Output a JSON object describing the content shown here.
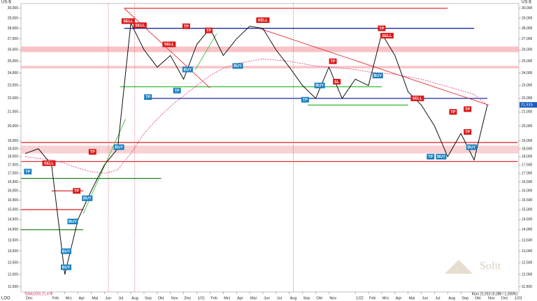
{
  "chart_data": {
    "type": "line",
    "axis_unit": "US-$",
    "scale_label": "LOG",
    "log_scale": true,
    "watermark": "Solit",
    "footer_left": "SMA(200) 21,478",
    "footer_right": "Kurs 21,515 (0,280 / 1,265%)",
    "last_label": "21,515",
    "categories": [
      "Dec",
      null,
      "Feb",
      "Mrz",
      "Apr",
      "Mai",
      "Jun",
      "Jul",
      "Aug",
      "Sep",
      "Okt",
      "Nov",
      "Dez",
      "1/21",
      "Feb",
      "Mrz",
      "Apr",
      "Mai",
      "Jun",
      "Jul",
      "Aug",
      "Sep",
      "Okt",
      "Nov",
      null,
      "1/22",
      "Feb",
      "Mrz",
      "Apr",
      "Mai",
      "Jun",
      "Jul",
      "Aug",
      "Sep",
      "Okt",
      "Nov",
      "Dez",
      "1/23"
    ],
    "series": [
      {
        "name": "Kurs",
        "color": "#111111",
        "values": [
          18200,
          18500,
          17500,
          12000,
          14500,
          16000,
          17500,
          18500,
          28500,
          26000,
          24500,
          25500,
          23500,
          26500,
          28000,
          25500,
          27000,
          28200,
          28000,
          26000,
          24500,
          23000,
          22000,
          24500,
          22000,
          23500,
          23000,
          27500,
          25500,
          22500,
          21500,
          20000,
          18000,
          19500,
          17800,
          21515,
          null,
          null
        ]
      },
      {
        "name": "SMA(200)",
        "color": "#e0307a",
        "values": [
          18000,
          17900,
          17800,
          17600,
          17300,
          17100,
          17000,
          17200,
          18200,
          19500,
          20500,
          21400,
          22200,
          23000,
          23800,
          24400,
          24800,
          25000,
          25200,
          25100,
          25000,
          24800,
          24600,
          24500,
          24400,
          24300,
          24100,
          24000,
          23900,
          23700,
          23500,
          23200,
          22900,
          22600,
          22300,
          21478,
          null,
          null
        ]
      }
    ],
    "ylim": [
      11300,
      30500
    ],
    "yticks": [
      {
        "value": 30000,
        "label": "30,000"
      },
      {
        "value": 29000,
        "label": "29,000"
      },
      {
        "value": 28000,
        "label": "28,000"
      },
      {
        "value": 27000,
        "label": "27,000"
      },
      {
        "value": 26000,
        "label": "26,000"
      },
      {
        "value": 25000,
        "label": "25,000"
      },
      {
        "value": 24000,
        "label": "24,000"
      },
      {
        "value": 23000,
        "label": "23,000"
      },
      {
        "value": 22000,
        "label": "22,000"
      },
      {
        "value": 21000,
        "label": "21,000"
      },
      {
        "value": 20000,
        "label": "20,000"
      },
      {
        "value": 19000,
        "label": "19,000"
      },
      {
        "value": 18500,
        "label": "18,500"
      },
      {
        "value": 18000,
        "label": "18,000"
      },
      {
        "value": 17500,
        "label": "17,500"
      },
      {
        "value": 17000,
        "label": "17,000"
      },
      {
        "value": 16500,
        "label": "16,500"
      },
      {
        "value": 16000,
        "label": "16,000"
      },
      {
        "value": 15500,
        "label": "15,500"
      },
      {
        "value": 15000,
        "label": "15,000"
      },
      {
        "value": 14500,
        "label": "14,500"
      },
      {
        "value": 14000,
        "label": "14,000"
      },
      {
        "value": 13500,
        "label": "13,500"
      },
      {
        "value": 13000,
        "label": "13,000"
      },
      {
        "value": 12500,
        "label": "12,500"
      },
      {
        "value": 12000,
        "label": "12,000"
      },
      {
        "value": 11500,
        "label": "11,500"
      }
    ],
    "bands": [
      {
        "color": "#f6b3b8",
        "low": 25800,
        "high": 26300
      },
      {
        "color": "#f6b3b8",
        "low": 24400,
        "high": 24600
      },
      {
        "color": "#f6c5c8",
        "low": 18200,
        "high": 18700
      }
    ],
    "levels": [
      {
        "color": "#e03030",
        "value": 30000,
        "from": 7.5,
        "to": 32
      },
      {
        "color": "#1a2aa0",
        "value": 28000,
        "from": 7.5,
        "to": 34
      },
      {
        "color": "#1a2aa0",
        "value": 22000,
        "from": 9,
        "to": 35
      },
      {
        "color": "#e03030",
        "value": 18900,
        "from": -0.3,
        "to": 37.3
      },
      {
        "color": "#e03030",
        "value": 17700,
        "from": -0.3,
        "to": 37.3
      },
      {
        "color": "#40c040",
        "value": 22900,
        "from": 7.2,
        "to": 27
      },
      {
        "color": "#40c040",
        "value": 21500,
        "from": 21.4,
        "to": 29
      },
      {
        "color": "#208020",
        "value": 16700,
        "from": -0.3,
        "to": 10.3
      },
      {
        "color": "#208020",
        "value": 14000,
        "from": -0.3,
        "to": 4.4
      },
      {
        "color": "#e03030",
        "value": 15000,
        "from": -0.3,
        "to": 4.4
      },
      {
        "color": "#e03030",
        "value": 16000,
        "from": 2,
        "to": 4.4
      }
    ],
    "trendlines": [
      {
        "color": "#e03030",
        "from": [
          7.5,
          30000
        ],
        "to": [
          14,
          22800
        ]
      },
      {
        "color": "#e03030",
        "from": [
          17.7,
          28000
        ],
        "to": [
          35.1,
          21500
        ]
      },
      {
        "color": "#40c040",
        "from": [
          4.4,
          14800
        ],
        "to": [
          7.6,
          20500
        ]
      },
      {
        "color": "#40c040",
        "from": [
          12.9,
          24300
        ],
        "to": [
          14.5,
          27500
        ]
      }
    ],
    "vlines": [
      {
        "color": "#e05050",
        "at": 6.3
      },
      {
        "color": "#e05050",
        "at": 8.3
      },
      {
        "color": "#40a040",
        "at": 20.3
      }
    ],
    "signals": [
      {
        "text": "TP",
        "color": "#1a7fc0",
        "x": 0.2,
        "y": 17100
      },
      {
        "text": "SELL",
        "color": "#d81818",
        "x": 1.8,
        "y": 17600
      },
      {
        "text": "TP",
        "color": "#d81818",
        "x": 3.9,
        "y": 16000
      },
      {
        "text": "BUY",
        "color": "#1a7fc0",
        "x": 4.7,
        "y": 15600
      },
      {
        "text": "BUY",
        "color": "#1a7fc0",
        "x": 3.6,
        "y": 14400
      },
      {
        "text": "BUY",
        "color": "#1a7fc0",
        "x": 3.1,
        "y": 13000
      },
      {
        "text": "BUY",
        "color": "#1a7fc0",
        "x": 3.1,
        "y": 12300
      },
      {
        "text": "TP",
        "color": "#d81818",
        "x": 5.1,
        "y": 18300
      },
      {
        "text": "BUY",
        "color": "#1a7fc0",
        "x": 7.1,
        "y": 18600
      },
      {
        "text": "SELL",
        "color": "#d81818",
        "x": 7.8,
        "y": 28700
      },
      {
        "text": "SELL",
        "color": "#d81818",
        "x": 8.7,
        "y": 28300
      },
      {
        "text": "TP",
        "color": "#1a7fc0",
        "x": 9.3,
        "y": 22100
      },
      {
        "text": "TP",
        "color": "#1a7fc0",
        "x": 11.5,
        "y": 22600
      },
      {
        "text": "SELL",
        "color": "#d81818",
        "x": 10.9,
        "y": 26500
      },
      {
        "text": "BUY",
        "color": "#1a7fc0",
        "x": 12.3,
        "y": 24300
      },
      {
        "text": "TP",
        "color": "#d81818",
        "x": 12.2,
        "y": 28200
      },
      {
        "text": "TP",
        "color": "#d81818",
        "x": 13.9,
        "y": 27800
      },
      {
        "text": "BUY",
        "color": "#1a7fc0",
        "x": 16.1,
        "y": 24600
      },
      {
        "text": "SELL",
        "color": "#d81818",
        "x": 18,
        "y": 28800
      },
      {
        "text": "TP",
        "color": "#1a7fc0",
        "x": 21.2,
        "y": 21900
      },
      {
        "text": "BUY",
        "color": "#1a7fc0",
        "x": 22.3,
        "y": 23000
      },
      {
        "text": "TP",
        "color": "#d81818",
        "x": 23.3,
        "y": 25000
      },
      {
        "text": "SL",
        "color": "#d81818",
        "x": 23.6,
        "y": 23300
      },
      {
        "text": "BUY",
        "color": "#1a7fc0",
        "x": 26.7,
        "y": 23800
      },
      {
        "text": "TP",
        "color": "#d81818",
        "x": 27,
        "y": 28000
      },
      {
        "text": "SELL",
        "color": "#d81818",
        "x": 27.4,
        "y": 27300
      },
      {
        "text": "SELL",
        "color": "#d81818",
        "x": 29.7,
        "y": 22000
      },
      {
        "text": "TP",
        "color": "#d81818",
        "x": 32.4,
        "y": 21000
      },
      {
        "text": "TP",
        "color": "#d81818",
        "x": 33.5,
        "y": 21200
      },
      {
        "text": "TP",
        "color": "#d81818",
        "x": 33.5,
        "y": 19600
      },
      {
        "text": "TP",
        "color": "#1a7fc0",
        "x": 30.7,
        "y": 18000
      },
      {
        "text": "BUY",
        "color": "#1a7fc0",
        "x": 31.5,
        "y": 18000
      },
      {
        "text": "BUY",
        "color": "#1a7fc0",
        "x": 33.8,
        "y": 18600
      }
    ]
  }
}
